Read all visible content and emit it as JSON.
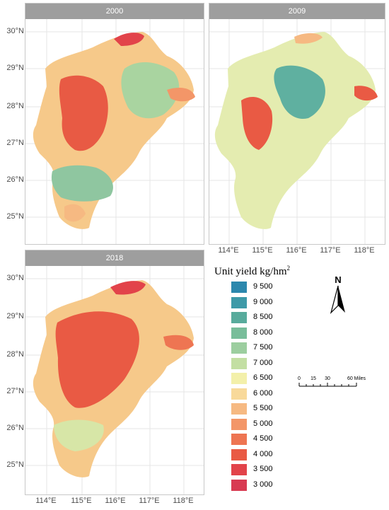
{
  "panels": [
    {
      "title": "2000"
    },
    {
      "title": "2009"
    },
    {
      "title": "2018"
    }
  ],
  "lat_labels": [
    "30°N",
    "29°N",
    "28°N",
    "27°N",
    "26°N",
    "25°N"
  ],
  "lon_labels": [
    "114°E",
    "115°E",
    "116°E",
    "117°E",
    "118°E"
  ],
  "legend": {
    "title": "Unit yield  kg/hm",
    "title_sup": "2",
    "items": [
      {
        "label": "9 500",
        "color": "#2c88ad"
      },
      {
        "label": "9 000",
        "color": "#3e9aa8"
      },
      {
        "label": "8 500",
        "color": "#58ab9c"
      },
      {
        "label": "8 000",
        "color": "#78bd9a"
      },
      {
        "label": "7 500",
        "color": "#9cce9f"
      },
      {
        "label": "7 000",
        "color": "#c3dfa3"
      },
      {
        "label": "6 500",
        "color": "#f3f0aa"
      },
      {
        "label": "6 000",
        "color": "#f8d99a"
      },
      {
        "label": "5 500",
        "color": "#f6b982"
      },
      {
        "label": "5 000",
        "color": "#f39668"
      },
      {
        "label": "4 500",
        "color": "#ee7552"
      },
      {
        "label": "4 000",
        "color": "#e95a44"
      },
      {
        "label": "3 500",
        "color": "#e2434a"
      },
      {
        "label": "3 000",
        "color": "#d83a52"
      }
    ]
  },
  "north_arrow": {
    "label": "N",
    "icon": "north-arrow-icon"
  },
  "scale_bar": {
    "ticks": [
      "0",
      "15",
      "30",
      "60 Miles"
    ]
  }
}
